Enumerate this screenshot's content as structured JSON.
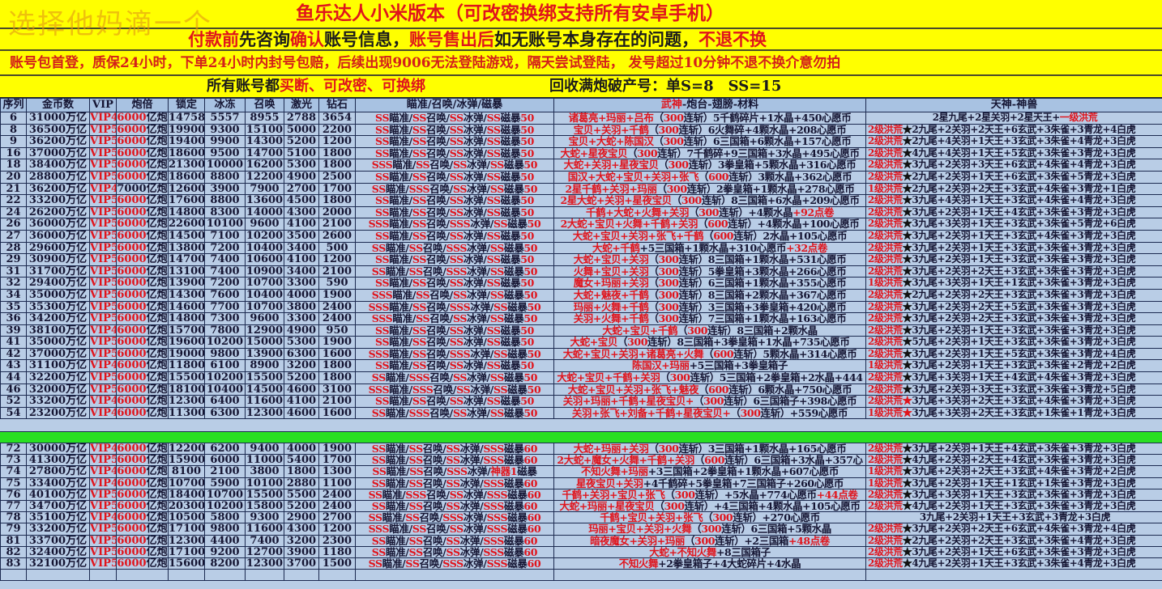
{
  "watermark": "选择他妈滴一个",
  "banner": {
    "title": "鱼乐达人小米版本（可改密换绑支持所有安卓手机）",
    "notice": [
      {
        "text": "付款前",
        "color": "red"
      },
      {
        "text": "先咨询",
        "color": "black"
      },
      {
        "text": "确认",
        "color": "red"
      },
      {
        "text": "账号信息，",
        "color": "black"
      },
      {
        "text": "账号售出后",
        "color": "red"
      },
      {
        "text": "如无账号本身存在的问题，",
        "color": "black"
      },
      {
        "text": "不退不换",
        "color": "red"
      }
    ],
    "policy": "账号包首登，质保24小时，下单24小时内封号包赔，后续出现9006无法登陆游戏，隔天尝试登陆， 发号超过10分钟不退不换介意勿拍",
    "all_accounts_prefix": "所有账号都",
    "all_accounts_terms": "买断、可改密、可换绑",
    "recycle": "回收满炮破产号：单S=8　SS=15"
  },
  "colors": {
    "banner": "#ffff00",
    "table": "#b9cde6",
    "header": "#a8c2e2",
    "accent_red": "#e0141c",
    "divider_green": "#29e022"
  },
  "columns": [
    "序列",
    "金币数",
    "VIP",
    "炮倍",
    "锁定",
    "冰冻",
    "召唤",
    "激光",
    "钻石",
    "瞄准/召唤/冰弹/磁暴",
    "武神-炮台-翅膀-材料",
    "天神-神兽"
  ],
  "wushen_header_red": "武神",
  "wushen_header_rest": "-炮台-翅膀-材料",
  "gold_unit": "万亿",
  "cannon_unit": "亿炮",
  "rows_top": [
    {
      "id": "6",
      "gold": "31000",
      "vip": "VIP4",
      "cannon": "6000",
      "lock": "14758",
      "freeze": "5557",
      "summon": "8955",
      "laser": "2788",
      "diamond": "3654",
      "skills": "SS瞄准/SS召唤/SS冰弹/SS磁暴50",
      "heroes": "诸葛亮+玛丽+吕布",
      "items": "（300连斩）5千鹤碎片+1水晶+450心愿币",
      "ts_plain": "2星九尾+2星关羽+2星天王+",
      "ts_plain_red": "一级洪荒"
    },
    {
      "id": "8",
      "gold": "36500",
      "vip": "VIP5",
      "cannon": "6000",
      "lock": "19900",
      "freeze": "9300",
      "summon": "15100",
      "laser": "5000",
      "diamond": "2200",
      "skills": "SS瞄准/SS召唤/SS冰弹/SS磁暴50",
      "heroes": "宝贝+关羽+千鹤",
      "items": "（300连斩）6火舞碎+4颗水晶+208心愿币",
      "level": "2级洪荒",
      "star": "black",
      "beasts": "2九尾+2关羽+2天王+6玄武+3朱雀+3青龙+4白虎"
    },
    {
      "id": "9",
      "gold": "36200",
      "vip": "VIP5",
      "cannon": "6000",
      "lock": "19400",
      "freeze": "9900",
      "summon": "14300",
      "laser": "5200",
      "diamond": "1200",
      "skills": "SS瞄准/SS召唤/SS冰弹/SS磁暴50",
      "heroes": "宝贝+大蛇+陈国汉",
      "items": "（300连斩）6三国箱+6颗水晶+157心愿币",
      "level": "2级洪荒",
      "star": "black",
      "beasts": "2九尾+4关羽+1天王+3玄武+3朱雀+4青龙+3白虎"
    },
    {
      "id": "16",
      "gold": "37000",
      "vip": "VIP5",
      "cannon": "6000",
      "lock": "18600",
      "freeze": "9500",
      "summon": "14700",
      "laser": "5100",
      "diamond": "1800",
      "skills": "SS瞄准/SS召唤/SS冰弹/SS磁暴50",
      "heroes": "大蛇+星夜宝贝",
      "items": "（300连斩）7千鹤碎+9三国箱+3水晶+495心愿币",
      "level": "2级洪荒",
      "star": "black",
      "beasts": "4九尾+4关羽+1天王+5玄武+3朱雀+3青龙+3白虎"
    },
    {
      "id": "18",
      "gold": "38400",
      "vip": "VIP5",
      "cannon": "6000",
      "lock": "21300",
      "freeze": "10000",
      "summon": "16200",
      "laser": "5300",
      "diamond": "1800",
      "skills": "SSS瞄准/SS召唤/SS冰弹/SS磁暴50",
      "heroes": "大蛇+关羽+星夜宝贝",
      "items": "（300连斩）3拳皇箱+5颗水晶+316心愿币",
      "level": "2级洪荒",
      "star": "black",
      "beasts": "3九尾+2关羽+3天王+6玄武+4朱雀+4青龙+3白虎"
    },
    {
      "id": "20",
      "gold": "28800",
      "vip": "VIP5",
      "cannon": "6000",
      "lock": "18600",
      "freeze": "8800",
      "summon": "12200",
      "laser": "4900",
      "diamond": "2500",
      "skills": "SS瞄准/SS召唤/SS冰弹/SS磁暴50",
      "heroes": "国汉+大蛇+宝贝+关羽+张飞",
      "items": "（600连斩）3颗水晶+362心愿币",
      "level": "2级洪荒",
      "star": "black",
      "beasts": "2九尾+2关羽+1天王+6玄武+3朱雀+5青龙+3白虎"
    },
    {
      "id": "21",
      "gold": "36200",
      "vip": "VIP4",
      "cannon": "7000",
      "cannon_black": true,
      "lock": "12600",
      "freeze": "3900",
      "summon": "7900",
      "laser": "2700",
      "diamond": "1700",
      "skills": "SS瞄准/SSS召唤/SS冰弹/SS磁暴50",
      "heroes": "2星千鹤+关羽+玛丽",
      "items": "（300连斩）2拳皇箱+1颗水晶+278心愿币",
      "level": "1级洪荒",
      "star": "black",
      "beasts": "2九尾+2关羽+2天王+3玄武+4朱雀+3青龙+1白虎"
    },
    {
      "id": "22",
      "gold": "33200",
      "vip": "VIP5",
      "cannon": "6000",
      "lock": "17600",
      "freeze": "8800",
      "summon": "13600",
      "laser": "4500",
      "diamond": "1800",
      "skills": "SS瞄准/SS召唤/SS冰弹/SS磁暴50",
      "heroes": "2星大蛇+关羽+星夜宝贝",
      "items": "（300连斩）8三国箱+6水晶+209心愿币",
      "level": "2级洪荒",
      "star": "black",
      "beasts": "3九尾+4关羽+1天王+3玄武+4朱雀+4青龙+3白虎"
    },
    {
      "id": "24",
      "gold": "26200",
      "vip": "VIP5",
      "cannon": "6000",
      "lock": "14800",
      "freeze": "8300",
      "summon": "14000",
      "laser": "4300",
      "diamond": "2000",
      "skills": "SS瞄准/SS召唤/SS冰弹/SS磁暴50",
      "heroes": "千鹤+大蛇+火舞+关羽",
      "items": "（300连斩）+4颗水晶+92点卷",
      "level": "2级洪荒",
      "star": "black",
      "beasts": "3九尾+2关羽+1天王+4玄武+3朱雀+3青龙+3白虎"
    },
    {
      "id": "26",
      "gold": "36000",
      "vip": "VIP5",
      "cannon": "6000",
      "lock": "22600",
      "freeze": "10100",
      "summon": "9600",
      "laser": "4100",
      "diamond": "2100",
      "skills": "SSS瞄准/SS召唤/SSS冰弹/SS磁暴50",
      "heroes": "2大蛇+宝贝+火舞+千鹤+关羽",
      "items": "（600连斩）+4颗水晶+100心愿币",
      "level": "2级洪荒",
      "star": "black",
      "beasts": "3九尾+3关羽+1天王+3玄武+3朱雀+5青龙+6白虎"
    },
    {
      "id": "27",
      "gold": "36000",
      "vip": "VIP5",
      "cannon": "6000",
      "lock": "14500",
      "freeze": "7100",
      "summon": "10200",
      "laser": "3500",
      "diamond": "2600",
      "skills": "SS瞄准/SS召唤/SS冰弹/SS磁暴50",
      "heroes": "大蛇+宝贝+关羽+张飞+千鹤",
      "items": "（600连斩）2水晶+105心愿币",
      "level": "2级洪荒",
      "star": "black",
      "beasts": "3九尾+2关羽+1天王+3玄武+4朱雀+3青龙+3白虎"
    },
    {
      "id": "28",
      "gold": "29600",
      "vip": "VIP5",
      "cannon": "6000",
      "lock": "13800",
      "freeze": "7200",
      "summon": "10400",
      "laser": "3400",
      "diamond": "500",
      "skills": "SS瞄准/SS召唤/SSS冰弹/SS磁暴50",
      "heroes": "大蛇+千鹤",
      "items": "+5三国箱+1颗水晶+310心愿币+32点卷",
      "level": "2级洪荒",
      "star": "black",
      "beasts": "3九尾+2关羽+1天王+3玄武+3朱雀+3青龙+3白虎"
    },
    {
      "id": "29",
      "gold": "30900",
      "vip": "VIP5",
      "cannon": "6000",
      "lock": "14700",
      "freeze": "7400",
      "summon": "10600",
      "laser": "4100",
      "diamond": "1200",
      "skills": "SS瞄准/SS召唤/SS冰弹/SS磁暴50",
      "heroes": "大蛇+宝贝+关羽",
      "items": "（300连斩）8三国箱+1颗水晶+531心愿币",
      "level": "2级洪荒",
      "star": "black",
      "beasts": "3九尾+2关羽+1天王+3玄武+3朱雀+3青龙+3白虎"
    },
    {
      "id": "31",
      "gold": "31700",
      "vip": "VIP5",
      "cannon": "6000",
      "lock": "13100",
      "freeze": "7400",
      "summon": "10900",
      "laser": "3400",
      "diamond": "2100",
      "skills": "SS瞄准/SS召唤/SSS冰弹/SS磁暴50",
      "heroes": "火舞+宝贝+关羽",
      "items": "（300连斩）5拳皇箱+3颗水晶+266心愿币",
      "level": "2级洪荒",
      "star": "black",
      "beasts": "3九尾+2关羽+2天王+3玄武+3朱雀+3青龙+3白虎"
    },
    {
      "id": "32",
      "gold": "29400",
      "vip": "VIP5",
      "cannon": "6000",
      "lock": "13900",
      "freeze": "7200",
      "summon": "10700",
      "laser": "3300",
      "diamond": "590",
      "skills": "SS瞄准/SS召唤/SS冰弹/SS磁暴50",
      "heroes": "魔女+玛丽+关羽",
      "items": "（300连斩）6三国箱+1颗水晶+355心愿币",
      "level": "1级洪荒",
      "star": "black",
      "beasts": "3九尾+3关羽+1天王+1玄武+3朱雀+3青龙+3白虎"
    },
    {
      "id": "34",
      "gold": "35000",
      "vip": "VIP5",
      "cannon": "6000",
      "lock": "14300",
      "freeze": "7600",
      "summon": "10400",
      "laser": "4000",
      "diamond": "1900",
      "skills": "SSS瞄准/SS召唤/SS冰弹/SS磁暴50",
      "heroes": "大蛇+魅夜+千鹤",
      "items": "（300连斩）8三国箱+2颗水晶+367心愿币",
      "level": "2级洪荒",
      "star": "black",
      "beasts": "2九尾+2关羽+2天王+3玄武+3朱雀+3青龙+3白虎"
    },
    {
      "id": "35",
      "gold": "35300",
      "vip": "VIP5",
      "cannon": "6000",
      "lock": "14600",
      "freeze": "7700",
      "summon": "10700",
      "laser": "3800",
      "diamond": "2400",
      "skills": "SSS瞄准/SS召唤/SSS冰弹/SS磁暴50",
      "heroes": "玛丽+火舞+千鹤",
      "items": "（300连斩）3三国箱+3拳皇箱+420心愿币",
      "level": "2级洪荒",
      "star": "black",
      "beasts": "3九尾+2关羽+2天王+5玄武+3朱雀+3青龙+3白虎"
    },
    {
      "id": "36",
      "gold": "34200",
      "vip": "VIP5",
      "cannon": "6000",
      "lock": "14800",
      "freeze": "7300",
      "summon": "9600",
      "laser": "3300",
      "diamond": "2400",
      "skills": "SSS瞄准/SS召唤/SS冰弹/SS磁暴50",
      "heroes": "关羽+火舞+千鹤",
      "items": "（300连斩）7三国箱+1颗水晶+163心愿币",
      "level": "2级洪荒",
      "star": "black",
      "beasts": "3九尾+2关羽+2天王+3玄武+3朱雀+3青龙+3白虎"
    },
    {
      "id": "39",
      "gold": "38100",
      "vip": "VIP4",
      "cannon": "6000",
      "lock": "15700",
      "freeze": "7800",
      "summon": "12900",
      "laser": "4900",
      "diamond": "950",
      "skills": "SS瞄准/SS召唤/SS冰弹/SS磁暴50",
      "heroes": "大蛇+宝贝+千鹤",
      "items": "（300连斩）8三国箱+2颗水晶",
      "level": "2级洪荒",
      "star": "black",
      "beasts": "3九尾+2关羽+1天王+3玄武+3朱雀+3青龙+3白虎"
    },
    {
      "id": "41",
      "gold": "35000",
      "vip": "VIP5",
      "cannon": "6000",
      "lock": "19600",
      "freeze": "10200",
      "summon": "15000",
      "laser": "5300",
      "diamond": "1900",
      "skills": "SS瞄准/SS召唤/SS冰弹/SS磁暴50",
      "heroes": "大蛇+宝贝",
      "items": "（300连斩）8三国箱+3拳皇箱+1水晶+735心愿币",
      "level": "2级洪荒",
      "star": "black",
      "beasts": "5九尾+2关羽+1天王+3玄武+3朱雀+3青龙+3白虎"
    },
    {
      "id": "42",
      "gold": "37000",
      "vip": "VIP5",
      "cannon": "6000",
      "lock": "19000",
      "freeze": "9800",
      "summon": "13900",
      "laser": "6300",
      "diamond": "1600",
      "skills": "SSS瞄准/SS召唤/SSS冰弹/SS磁暴50",
      "heroes": "大蛇+宝贝+关羽+诸葛亮+火舞",
      "items": "（600连斩）5颗水晶+314心愿币",
      "level": "2级洪荒",
      "star": "black",
      "beasts": "3九尾+2关羽+1天王+5玄武+3朱雀+3青龙+4白虎"
    },
    {
      "id": "43",
      "gold": "31100",
      "vip": "VIP4",
      "cannon": "6000",
      "lock": "11800",
      "freeze": "6100",
      "summon": "8900",
      "laser": "3200",
      "diamond": "1800",
      "skills": "SS瞄准/SS召唤/SS冰弹/SS磁暴50",
      "heroes": "陈国汉+玛丽",
      "items": "+5三国箱+3拳皇箱子",
      "level": "1级洪荒",
      "star": "black",
      "beasts": "3九尾+2关羽+1天王+3玄武+3朱雀+2青龙+2白虎"
    },
    {
      "id": "44",
      "gold": "32200",
      "vip": "VIP5",
      "cannon": "6000",
      "lock": "15500",
      "freeze": "10200",
      "summon": "15500",
      "laser": "5200",
      "diamond": "1800",
      "skills": "SS瞄准/SSS召唤/SS冰弹/SS磁暴50",
      "heroes": "大蛇+宝贝+千鹤+关羽",
      "items": "（300连斩）5三国箱+2拳皇箱+2水晶+444",
      "level": "2级洪荒",
      "star": "black",
      "beasts": "3九尾+3关羽+1天王+4玄武+4朱雀+3青龙+3白虎"
    },
    {
      "id": "46",
      "gold": "32000",
      "vip": "VIP5",
      "cannon": "6000",
      "lock": "18100",
      "freeze": "10400",
      "summon": "14500",
      "laser": "4600",
      "diamond": "3100",
      "skills": "SSS瞄准/SSS召唤/SS冰弹/SS磁暴50",
      "heroes": "大蛇+宝贝+关羽+张飞+魅夜",
      "items": "（600连斩）6颗水晶+750心愿币",
      "level": "2级洪荒",
      "star": "black",
      "beasts": "3九尾+2关羽+3天王+3玄武+3朱雀+3青龙+5白虎"
    },
    {
      "id": "52",
      "gold": "33200",
      "vip": "VIP4",
      "cannon": "6000",
      "lock": "12300",
      "freeze": "6400",
      "summon": "11600",
      "laser": "4100",
      "diamond": "2100",
      "skills": "SS瞄准/SS召唤/SS冰弹/SS磁暴50",
      "heroes": "关羽+玛丽+千鹤+星夜宝贝+",
      "items": "（300连斩）6三国箱子+398心愿币",
      "level": "2级洪荒",
      "star": "red",
      "beasts": "3九尾+3关羽+2天王+3玄武+4朱雀+3青龙+3白虎"
    },
    {
      "id": "54",
      "gold": "23200",
      "vip": "VIP4",
      "cannon": "6000",
      "lock": "11300",
      "freeze": "6300",
      "summon": "12300",
      "laser": "4600",
      "diamond": "1600",
      "skills": "SS瞄准/SSS召唤/SS冰弹/SS磁暴50",
      "heroes": "关羽+张飞+刘备+千鹤+星夜宝贝+",
      "items": "（300连斩）+559心愿币",
      "level": "1级洪荒",
      "star": "red",
      "beasts": "3九尾+3关羽+2天王+3玄武+1朱雀+1青龙+3白虎"
    }
  ],
  "rows_bottom": [
    {
      "id": "72",
      "gold": "30000",
      "vip": "VIP4",
      "cannon": "6000",
      "lock": "12200",
      "freeze": "6200",
      "summon": "9400",
      "laser": "4000",
      "diamond": "1900",
      "skills": "SS瞄准/SS召唤/SS冰弹/SSS磁暴60",
      "heroes": "大蛇+玛丽+关羽",
      "items": "（300连斩）3三国箱+1颗水晶+165心愿币",
      "level": "2级洪荒",
      "star": "black",
      "beasts": "3九尾+2关羽+1天王+4玄武+3朱雀+3青龙+3白虎"
    },
    {
      "id": "73",
      "gold": "41300",
      "vip": "VIP5",
      "cannon": "6000",
      "lock": "15900",
      "freeze": "6000",
      "summon": "11000",
      "laser": "5400",
      "diamond": "1700",
      "skills": "SS瞄准/SS召唤/SS冰弹/SSS磁暴60",
      "heroes": "2大蛇+魔女+火舞+千鹤+关羽",
      "items": "（600连斩）6三国箱+3水晶+357心",
      "level": "2级洪荒",
      "star": "black",
      "beasts": "4九尾+2关羽+2天王+4玄武+3朱雀+3青龙+3白虎"
    },
    {
      "id": "74",
      "gold": "27800",
      "vip": "VIP4",
      "cannon": "6000",
      "lock": "8100",
      "freeze": "2100",
      "summon": "3800",
      "laser": "1800",
      "diamond": "1300",
      "skills": "SS瞄准/SS召唤/SSS冰弹/神器1磁暴",
      "heroes": "不知火舞+玛丽",
      "items": "+3三国箱+2拳皇箱+1颗水晶+607心愿币",
      "level": "1级洪荒",
      "star": "black",
      "beasts": "3九尾+2关羽+2天王+3玄武+4朱雀+3青龙+2白虎"
    },
    {
      "id": "75",
      "gold": "33400",
      "vip": "VIP4",
      "cannon": "6000",
      "lock": "10700",
      "freeze": "5900",
      "summon": "10100",
      "laser": "2880",
      "diamond": "1100",
      "skills": "SS瞄准/SS召唤/SS冰弹/SSS磁暴60",
      "heroes": "星夜宝贝+关羽",
      "items": "+4千鹤碎+5拳皇箱+7三国箱子+260心愿币",
      "level": "1级洪荒",
      "star": "black",
      "beasts": "3九尾+2关羽+1天王+1玄武+1朱雀+3青龙+3白虎"
    },
    {
      "id": "76",
      "gold": "40100",
      "vip": "VIP5",
      "cannon": "6000",
      "lock": "18400",
      "freeze": "10700",
      "summon": "15500",
      "laser": "5500",
      "diamond": "2400",
      "skills": "SS瞄准/SSS召唤/SS冰弹/SSS磁暴60",
      "heroes": "千鹤+关羽+宝贝+张飞",
      "items": "（300连斩）+5水晶+774心愿币+44点卷",
      "level": "2级洪荒",
      "star": "black",
      "beasts": "3九尾+3关羽+1天王+3玄武+3朱雀+3青龙+3白虎"
    },
    {
      "id": "77",
      "gold": "34700",
      "vip": "VIP5",
      "cannon": "6000",
      "lock": "20300",
      "freeze": "10200",
      "summon": "15800",
      "laser": "5200",
      "diamond": "2400",
      "skills": "SS瞄准/SS召唤/SS冰弹/SSS磁暴60",
      "heroes": "大蛇+玛丽+星夜宝贝",
      "items": "（300连斩）+4三国箱+4颗水晶+105心愿币",
      "level": "2级洪荒",
      "star": "black",
      "beasts": "4九尾+2关羽+1天王+3玄武+3朱雀+3青龙+3白虎"
    },
    {
      "id": "78",
      "gold": "35100",
      "vip": "VIP4",
      "cannon": "6000",
      "lock": "10500",
      "freeze": "5800",
      "summon": "9300",
      "laser": "2900",
      "diamond": "2700",
      "skills": "SS瞄准/SS召唤/SSS冰弹/SSS磁暴60",
      "heroes": "千鹤+宝贝+关羽+张飞",
      "items": "（300连斩）+270心愿币",
      "ts_plain": "3九尾+2关羽+1天王+3玄武+3青龙+3白虎"
    },
    {
      "id": "79",
      "gold": "33200",
      "vip": "VIP5",
      "cannon": "6000",
      "lock": "17100",
      "freeze": "9800",
      "summon": "11600",
      "laser": "4300",
      "diamond": "1200",
      "skills": "SSS瞄准/SS召唤/SS冰弹/SSS磁暴60",
      "heroes": "玛丽+宝贝+关羽+火舞",
      "items": "（300连斩）6三国箱+5颗水晶",
      "level": "2级洪荒",
      "star": "black",
      "beasts": "3九尾+2关羽+2天王+6玄武+4朱雀+3青龙+4白虎"
    },
    {
      "id": "81",
      "gold": "33700",
      "vip": "VIP5",
      "cannon": "6000",
      "lock": "12300",
      "freeze": "4400",
      "summon": "7400",
      "laser": "3200",
      "diamond": "2300",
      "skills": "SS瞄准/SS召唤/SS冰弹/SSS磁暴60",
      "heroes": "暗夜魔女+关羽+玛丽",
      "items": "（300连斩）+2三国箱+48点卷",
      "level": "2级洪荒",
      "star": "black",
      "beasts": "2九尾+2关羽+2天王+3玄武+3朱雀+4青龙+3白虎"
    },
    {
      "id": "82",
      "gold": "32400",
      "vip": "VIP5",
      "cannon": "6000",
      "lock": "17100",
      "freeze": "9200",
      "summon": "12700",
      "laser": "3900",
      "diamond": "1180",
      "skills": "SS瞄准/SS召唤/SS冰弹/SSS磁暴60",
      "heroes": "大蛇+不知火舞",
      "items": "+8三国箱子",
      "level": "2级洪荒",
      "star": "black",
      "beasts": "3九尾+2关羽+1天王+6玄武+3朱雀+3青龙+3白虎"
    },
    {
      "id": "83",
      "gold": "32100",
      "vip": "VIP5",
      "cannon": "6000",
      "lock": "15600",
      "freeze": "8200",
      "summon": "12300",
      "laser": "3700",
      "diamond": "1500",
      "skills": "SS瞄准/SS召唤/SSS冰弹/SSS磁暴60",
      "heroes": "不知火舞",
      "items": "+2拳皇箱子+4大蛇碎片+4水晶",
      "level": "2级洪荒",
      "star": "black",
      "beasts": "4九尾+2关羽+1天王+3玄武+3朱雀+4青龙+3白虎"
    }
  ]
}
